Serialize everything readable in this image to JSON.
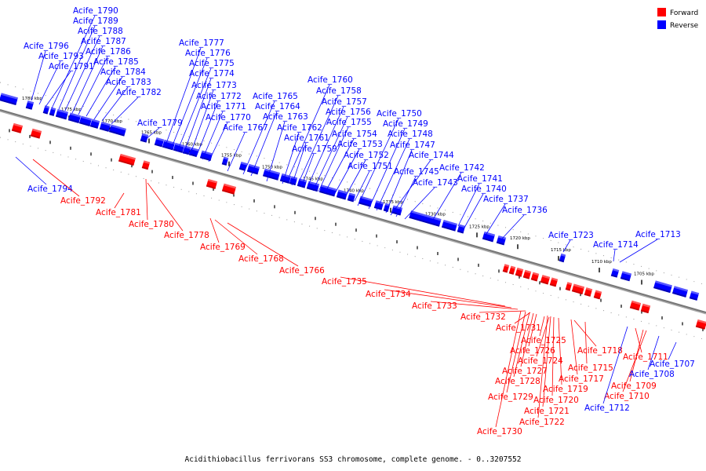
{
  "caption": "Acidithiobacillus ferrivorans SS3 chromosome, complete genome. - 0..3207552",
  "legend": [
    {
      "label": "Forward",
      "color": "#ff0000"
    },
    {
      "label": "Reverse",
      "color": "#0000ff"
    }
  ],
  "colors": {
    "forward": "#ff0000",
    "reverse": "#0000ff",
    "forward_dark": "#aa0000",
    "reverse_dark": "#000088",
    "backbone": "#777777"
  },
  "scale_labels": [
    "1780 kbp",
    "1775 kbp",
    "1770 kbp",
    "1765 kbp",
    "1760 kbp",
    "1755 kbp",
    "1750 kbp",
    "1745 kbp",
    "1740 kbp",
    "1735 kbp",
    "1730 kbp",
    "1725 kbp",
    "1720 kbp",
    "1715 kbp",
    "1710 kbp",
    "1705 kbp"
  ],
  "genes": [
    {
      "name": "Acife_1796",
      "strand": "reverse"
    },
    {
      "name": "Acife_1793",
      "strand": "reverse"
    },
    {
      "name": "Acife_1791",
      "strand": "reverse"
    },
    {
      "name": "Acife_1790",
      "strand": "reverse"
    },
    {
      "name": "Acife_1789",
      "strand": "reverse"
    },
    {
      "name": "Acife_1788",
      "strand": "reverse"
    },
    {
      "name": "Acife_1787",
      "strand": "reverse"
    },
    {
      "name": "Acife_1786",
      "strand": "reverse"
    },
    {
      "name": "Acife_1785",
      "strand": "reverse"
    },
    {
      "name": "Acife_1784",
      "strand": "reverse"
    },
    {
      "name": "Acife_1783",
      "strand": "reverse"
    },
    {
      "name": "Acife_1782",
      "strand": "reverse"
    },
    {
      "name": "Acife_1779",
      "strand": "reverse"
    },
    {
      "name": "Acife_1777",
      "strand": "reverse"
    },
    {
      "name": "Acife_1776",
      "strand": "reverse"
    },
    {
      "name": "Acife_1775",
      "strand": "reverse"
    },
    {
      "name": "Acife_1774",
      "strand": "reverse"
    },
    {
      "name": "Acife_1773",
      "strand": "reverse"
    },
    {
      "name": "Acife_1772",
      "strand": "reverse"
    },
    {
      "name": "Acife_1771",
      "strand": "reverse"
    },
    {
      "name": "Acife_1770",
      "strand": "reverse"
    },
    {
      "name": "Acife_1767",
      "strand": "reverse"
    },
    {
      "name": "Acife_1765",
      "strand": "reverse"
    },
    {
      "name": "Acife_1764",
      "strand": "reverse"
    },
    {
      "name": "Acife_1763",
      "strand": "reverse"
    },
    {
      "name": "Acife_1762",
      "strand": "reverse"
    },
    {
      "name": "Acife_1761",
      "strand": "reverse"
    },
    {
      "name": "Acife_1760",
      "strand": "reverse"
    },
    {
      "name": "Acife_1759",
      "strand": "reverse"
    },
    {
      "name": "Acife_1758",
      "strand": "reverse"
    },
    {
      "name": "Acife_1757",
      "strand": "reverse"
    },
    {
      "name": "Acife_1756",
      "strand": "reverse"
    },
    {
      "name": "Acife_1755",
      "strand": "reverse"
    },
    {
      "name": "Acife_1754",
      "strand": "reverse"
    },
    {
      "name": "Acife_1753",
      "strand": "reverse"
    },
    {
      "name": "Acife_1752",
      "strand": "reverse"
    },
    {
      "name": "Acife_1751",
      "strand": "reverse"
    },
    {
      "name": "Acife_1750",
      "strand": "reverse"
    },
    {
      "name": "Acife_1749",
      "strand": "reverse"
    },
    {
      "name": "Acife_1748",
      "strand": "reverse"
    },
    {
      "name": "Acife_1747",
      "strand": "reverse"
    },
    {
      "name": "Acife_1745",
      "strand": "reverse"
    },
    {
      "name": "Acife_1744",
      "strand": "reverse"
    },
    {
      "name": "Acife_1743",
      "strand": "reverse"
    },
    {
      "name": "Acife_1742",
      "strand": "reverse"
    },
    {
      "name": "Acife_1741",
      "strand": "reverse"
    },
    {
      "name": "Acife_1740",
      "strand": "reverse"
    },
    {
      "name": "Acife_1737",
      "strand": "reverse"
    },
    {
      "name": "Acife_1736",
      "strand": "reverse"
    },
    {
      "name": "Acife_1723",
      "strand": "reverse"
    },
    {
      "name": "Acife_1714",
      "strand": "reverse"
    },
    {
      "name": "Acife_1713",
      "strand": "reverse"
    },
    {
      "name": "Acife_1794",
      "strand": "reverse"
    },
    {
      "name": "Acife_1792",
      "strand": "forward"
    },
    {
      "name": "Acife_1781",
      "strand": "forward"
    },
    {
      "name": "Acife_1780",
      "strand": "forward"
    },
    {
      "name": "Acife_1778",
      "strand": "forward"
    },
    {
      "name": "Acife_1769",
      "strand": "forward"
    },
    {
      "name": "Acife_1768",
      "strand": "forward"
    },
    {
      "name": "Acife_1766",
      "strand": "forward"
    },
    {
      "name": "Acife_1735",
      "strand": "forward"
    },
    {
      "name": "Acife_1734",
      "strand": "forward"
    },
    {
      "name": "Acife_1733",
      "strand": "forward"
    },
    {
      "name": "Acife_1732",
      "strand": "forward"
    },
    {
      "name": "Acife_1731",
      "strand": "forward"
    },
    {
      "name": "Acife_1725",
      "strand": "forward"
    },
    {
      "name": "Acife_1726",
      "strand": "forward"
    },
    {
      "name": "Acife_1724",
      "strand": "forward"
    },
    {
      "name": "Acife_1727",
      "strand": "forward"
    },
    {
      "name": "Acife_1728",
      "strand": "forward"
    },
    {
      "name": "Acife_1729",
      "strand": "forward"
    },
    {
      "name": "Acife_1730",
      "strand": "forward"
    },
    {
      "name": "Acife_1718",
      "strand": "forward"
    },
    {
      "name": "Acife_1715",
      "strand": "forward"
    },
    {
      "name": "Acife_1717",
      "strand": "forward"
    },
    {
      "name": "Acife_1719",
      "strand": "forward"
    },
    {
      "name": "Acife_1720",
      "strand": "forward"
    },
    {
      "name": "Acife_1721",
      "strand": "forward"
    },
    {
      "name": "Acife_1722",
      "strand": "forward"
    },
    {
      "name": "Acife_1711",
      "strand": "forward"
    },
    {
      "name": "Acife_1709",
      "strand": "forward"
    },
    {
      "name": "Acife_1710",
      "strand": "forward"
    },
    {
      "name": "Acife_1712",
      "strand": "reverse"
    },
    {
      "name": "Acife_1708",
      "strand": "reverse"
    },
    {
      "name": "Acife_1707",
      "strand": "reverse"
    }
  ]
}
